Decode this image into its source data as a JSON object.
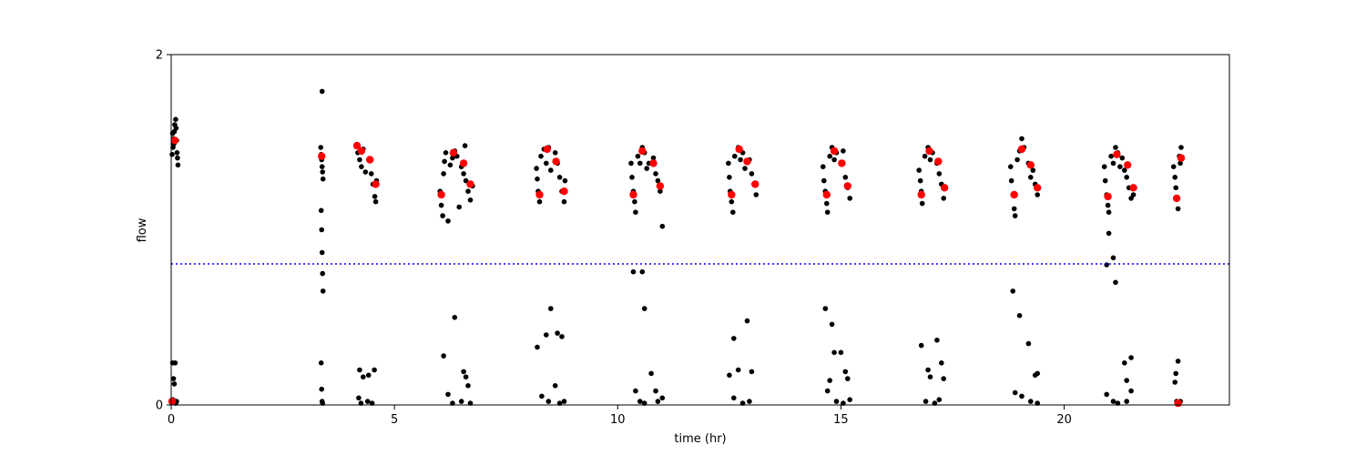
{
  "chart_data": {
    "type": "scatter",
    "title": "",
    "xlabel": "time (hr)",
    "ylabel": "flow",
    "xlim": [
      0,
      23.7
    ],
    "ylim": [
      0,
      2
    ],
    "x_ticks": [
      0,
      5,
      10,
      15,
      20
    ],
    "x_tick_labels": [
      "0",
      "5",
      "10",
      "15",
      "20"
    ],
    "y_ticks": [
      0,
      2
    ],
    "y_tick_labels": [
      "0",
      "2"
    ],
    "grid": false,
    "threshold_line": {
      "y": 0.805,
      "style": "dotted",
      "color": "#0000ff"
    },
    "series": [
      {
        "color": "#000000",
        "marker": "circle",
        "points": [
          [
            0.02,
            1.43
          ],
          [
            0.04,
            1.47
          ],
          [
            0.05,
            1.52
          ],
          [
            0.07,
            1.56
          ],
          [
            0.08,
            1.6
          ],
          [
            0.1,
            1.63
          ],
          [
            0.12,
            1.51
          ],
          [
            0.13,
            1.44
          ],
          [
            0.15,
            1.37
          ],
          [
            0.03,
            1.55
          ],
          [
            0.06,
            1.49
          ],
          [
            0.11,
            1.58
          ],
          [
            0.14,
            1.41
          ],
          [
            0.03,
            0.24
          ],
          [
            0.05,
            0.15
          ],
          [
            0.07,
            0.12
          ],
          [
            0.09,
            0.24
          ],
          [
            0.1,
            0.01
          ],
          [
            0.12,
            0.02
          ],
          [
            0.04,
            0.03
          ],
          [
            3.38,
            1.79
          ],
          [
            3.35,
            1.47
          ],
          [
            3.36,
            1.43
          ],
          [
            3.37,
            1.4
          ],
          [
            3.38,
            1.36
          ],
          [
            3.39,
            1.33
          ],
          [
            3.4,
            1.29
          ],
          [
            3.36,
            1.11
          ],
          [
            3.37,
            1.0
          ],
          [
            3.38,
            0.87
          ],
          [
            3.39,
            0.75
          ],
          [
            3.4,
            0.65
          ],
          [
            3.36,
            0.24
          ],
          [
            3.37,
            0.09
          ],
          [
            3.38,
            0.02
          ],
          [
            3.39,
            0.01
          ],
          [
            4.15,
            1.48
          ],
          [
            4.18,
            1.44
          ],
          [
            4.22,
            1.4
          ],
          [
            4.26,
            1.36
          ],
          [
            4.3,
            1.46
          ],
          [
            4.35,
            1.33
          ],
          [
            4.42,
            1.4
          ],
          [
            4.48,
            1.32
          ],
          [
            4.52,
            1.26
          ],
          [
            4.56,
            1.19
          ],
          [
            4.58,
            1.16
          ],
          [
            4.6,
            1.28
          ],
          [
            4.2,
            0.04
          ],
          [
            4.25,
            0.01
          ],
          [
            4.4,
            0.02
          ],
          [
            4.5,
            0.01
          ],
          [
            4.22,
            0.2
          ],
          [
            4.3,
            0.16
          ],
          [
            4.42,
            0.17
          ],
          [
            4.55,
            0.2
          ],
          [
            6.02,
            1.22
          ],
          [
            6.05,
            1.14
          ],
          [
            6.08,
            1.08
          ],
          [
            6.1,
            1.32
          ],
          [
            6.12,
            1.39
          ],
          [
            6.15,
            1.44
          ],
          [
            6.2,
            1.05
          ],
          [
            6.25,
            1.37
          ],
          [
            6.3,
            1.41
          ],
          [
            6.35,
            1.45
          ],
          [
            6.4,
            1.42
          ],
          [
            6.45,
            1.13
          ],
          [
            6.5,
            1.36
          ],
          [
            6.55,
            1.32
          ],
          [
            6.58,
            1.48
          ],
          [
            6.6,
            1.28
          ],
          [
            6.65,
            1.22
          ],
          [
            6.7,
            1.17
          ],
          [
            6.75,
            1.25
          ],
          [
            6.35,
            0.5
          ],
          [
            6.1,
            0.28
          ],
          [
            6.55,
            0.19
          ],
          [
            6.6,
            0.16
          ],
          [
            6.2,
            0.06
          ],
          [
            6.3,
            0.01
          ],
          [
            6.5,
            0.02
          ],
          [
            6.7,
            0.01
          ],
          [
            6.65,
            0.11
          ],
          [
            8.18,
            1.35
          ],
          [
            8.2,
            1.29
          ],
          [
            8.22,
            1.22
          ],
          [
            8.25,
            1.16
          ],
          [
            8.28,
            1.42
          ],
          [
            8.35,
            1.46
          ],
          [
            8.4,
            1.38
          ],
          [
            8.45,
            1.47
          ],
          [
            8.5,
            1.34
          ],
          [
            8.6,
            1.44
          ],
          [
            8.65,
            1.38
          ],
          [
            8.7,
            1.3
          ],
          [
            8.75,
            1.22
          ],
          [
            8.8,
            1.16
          ],
          [
            8.82,
            1.28
          ],
          [
            8.2,
            0.33
          ],
          [
            8.4,
            0.4
          ],
          [
            8.5,
            0.55
          ],
          [
            8.65,
            0.41
          ],
          [
            8.75,
            0.39
          ],
          [
            8.3,
            0.05
          ],
          [
            8.45,
            0.02
          ],
          [
            8.6,
            0.11
          ],
          [
            8.7,
            0.01
          ],
          [
            8.8,
            0.02
          ],
          [
            10.3,
            1.38
          ],
          [
            10.32,
            1.3
          ],
          [
            10.35,
            1.22
          ],
          [
            10.38,
            1.16
          ],
          [
            10.4,
            1.1
          ],
          [
            10.45,
            1.42
          ],
          [
            10.5,
            1.38
          ],
          [
            10.55,
            1.47
          ],
          [
            10.6,
            1.44
          ],
          [
            10.65,
            1.35
          ],
          [
            10.7,
            1.38
          ],
          [
            10.8,
            1.41
          ],
          [
            10.85,
            1.32
          ],
          [
            10.9,
            1.28
          ],
          [
            10.95,
            1.22
          ],
          [
            11.0,
            1.02
          ],
          [
            10.35,
            0.76
          ],
          [
            10.55,
            0.76
          ],
          [
            10.6,
            0.55
          ],
          [
            10.4,
            0.08
          ],
          [
            10.5,
            0.02
          ],
          [
            10.6,
            0.01
          ],
          [
            10.75,
            0.18
          ],
          [
            10.85,
            0.08
          ],
          [
            10.9,
            0.02
          ],
          [
            11.0,
            0.04
          ],
          [
            12.48,
            1.38
          ],
          [
            12.5,
            1.3
          ],
          [
            12.52,
            1.22
          ],
          [
            12.55,
            1.16
          ],
          [
            12.58,
            1.1
          ],
          [
            12.62,
            1.42
          ],
          [
            12.7,
            1.47
          ],
          [
            12.75,
            1.4
          ],
          [
            12.8,
            1.44
          ],
          [
            12.85,
            1.35
          ],
          [
            12.95,
            1.4
          ],
          [
            13.0,
            1.32
          ],
          [
            13.05,
            1.26
          ],
          [
            13.1,
            1.2
          ],
          [
            12.6,
            0.38
          ],
          [
            12.7,
            0.2
          ],
          [
            12.9,
            0.48
          ],
          [
            13.0,
            0.19
          ],
          [
            12.5,
            0.17
          ],
          [
            12.6,
            0.04
          ],
          [
            12.8,
            0.01
          ],
          [
            12.95,
            0.02
          ],
          [
            14.6,
            1.36
          ],
          [
            14.62,
            1.28
          ],
          [
            14.65,
            1.22
          ],
          [
            14.68,
            1.15
          ],
          [
            14.7,
            1.1
          ],
          [
            14.75,
            1.42
          ],
          [
            14.8,
            1.47
          ],
          [
            14.85,
            1.4
          ],
          [
            14.9,
            1.44
          ],
          [
            15.0,
            1.38
          ],
          [
            15.05,
            1.45
          ],
          [
            15.1,
            1.3
          ],
          [
            15.15,
            1.24
          ],
          [
            15.2,
            1.18
          ],
          [
            14.65,
            0.55
          ],
          [
            14.8,
            0.46
          ],
          [
            14.85,
            0.3
          ],
          [
            15.0,
            0.3
          ],
          [
            14.75,
            0.14
          ],
          [
            15.1,
            0.19
          ],
          [
            15.15,
            0.15
          ],
          [
            14.7,
            0.08
          ],
          [
            14.9,
            0.02
          ],
          [
            15.05,
            0.01
          ],
          [
            15.2,
            0.03
          ],
          [
            16.75,
            1.34
          ],
          [
            16.78,
            1.28
          ],
          [
            16.8,
            1.22
          ],
          [
            16.82,
            1.15
          ],
          [
            16.88,
            1.42
          ],
          [
            16.95,
            1.47
          ],
          [
            17.0,
            1.4
          ],
          [
            17.05,
            1.44
          ],
          [
            17.15,
            1.38
          ],
          [
            17.2,
            1.32
          ],
          [
            17.25,
            1.26
          ],
          [
            17.3,
            1.18
          ],
          [
            16.8,
            0.34
          ],
          [
            16.95,
            0.2
          ],
          [
            17.0,
            0.16
          ],
          [
            17.15,
            0.37
          ],
          [
            17.25,
            0.24
          ],
          [
            17.3,
            0.15
          ],
          [
            16.9,
            0.02
          ],
          [
            17.1,
            0.01
          ],
          [
            17.2,
            0.03
          ],
          [
            18.8,
            1.36
          ],
          [
            18.82,
            1.28
          ],
          [
            18.85,
            1.2
          ],
          [
            18.88,
            1.12
          ],
          [
            18.9,
            1.08
          ],
          [
            18.95,
            1.4
          ],
          [
            19.0,
            1.45
          ],
          [
            19.05,
            1.52
          ],
          [
            19.1,
            1.47
          ],
          [
            19.2,
            1.38
          ],
          [
            19.25,
            1.3
          ],
          [
            19.3,
            1.34
          ],
          [
            19.35,
            1.26
          ],
          [
            19.4,
            1.2
          ],
          [
            18.85,
            0.65
          ],
          [
            19.0,
            0.51
          ],
          [
            19.2,
            0.35
          ],
          [
            19.35,
            0.17
          ],
          [
            19.4,
            0.18
          ],
          [
            18.9,
            0.07
          ],
          [
            19.05,
            0.05
          ],
          [
            19.25,
            0.02
          ],
          [
            19.4,
            0.01
          ],
          [
            20.9,
            1.36
          ],
          [
            20.92,
            1.28
          ],
          [
            20.95,
            1.2
          ],
          [
            20.98,
            1.14
          ],
          [
            21.0,
            1.1
          ],
          [
            21.05,
            1.42
          ],
          [
            21.1,
            1.38
          ],
          [
            21.15,
            1.47
          ],
          [
            21.2,
            1.44
          ],
          [
            21.25,
            1.36
          ],
          [
            21.3,
            1.41
          ],
          [
            21.35,
            1.34
          ],
          [
            21.4,
            1.3
          ],
          [
            21.45,
            1.24
          ],
          [
            21.5,
            1.18
          ],
          [
            21.55,
            1.2
          ],
          [
            20.95,
            0.8
          ],
          [
            21.0,
            0.98
          ],
          [
            21.1,
            0.84
          ],
          [
            21.15,
            0.7
          ],
          [
            21.35,
            0.24
          ],
          [
            21.4,
            0.14
          ],
          [
            21.5,
            0.27
          ],
          [
            20.95,
            0.06
          ],
          [
            21.1,
            0.02
          ],
          [
            21.2,
            0.01
          ],
          [
            21.4,
            0.02
          ],
          [
            21.5,
            0.08
          ],
          [
            22.45,
            1.36
          ],
          [
            22.48,
            1.3
          ],
          [
            22.5,
            1.24
          ],
          [
            22.52,
            1.18
          ],
          [
            22.55,
            1.12
          ],
          [
            22.58,
            1.42
          ],
          [
            22.6,
            1.38
          ],
          [
            22.62,
            1.47
          ],
          [
            22.5,
            0.18
          ],
          [
            22.55,
            0.25
          ],
          [
            22.48,
            0.13
          ],
          [
            22.52,
            0.02
          ],
          [
            22.58,
            0.01
          ],
          [
            22.6,
            0.02
          ]
        ]
      },
      {
        "color": "#ff0000",
        "marker": "circle",
        "points": [
          [
            0.08,
            1.51
          ],
          [
            3.37,
            1.42
          ],
          [
            4.16,
            1.48
          ],
          [
            4.26,
            1.45
          ],
          [
            4.45,
            1.4
          ],
          [
            4.58,
            1.26
          ],
          [
            6.05,
            1.2
          ],
          [
            6.32,
            1.44
          ],
          [
            6.55,
            1.38
          ],
          [
            6.7,
            1.26
          ],
          [
            8.25,
            1.2
          ],
          [
            8.42,
            1.46
          ],
          [
            8.62,
            1.39
          ],
          [
            8.8,
            1.22
          ],
          [
            10.35,
            1.2
          ],
          [
            10.55,
            1.45
          ],
          [
            10.8,
            1.38
          ],
          [
            10.95,
            1.25
          ],
          [
            12.55,
            1.2
          ],
          [
            12.72,
            1.46
          ],
          [
            12.9,
            1.39
          ],
          [
            13.08,
            1.26
          ],
          [
            14.68,
            1.2
          ],
          [
            14.85,
            1.45
          ],
          [
            15.02,
            1.38
          ],
          [
            15.15,
            1.25
          ],
          [
            16.8,
            1.2
          ],
          [
            16.98,
            1.45
          ],
          [
            17.18,
            1.39
          ],
          [
            17.32,
            1.24
          ],
          [
            18.88,
            1.2
          ],
          [
            19.05,
            1.46
          ],
          [
            19.25,
            1.37
          ],
          [
            19.4,
            1.24
          ],
          [
            20.98,
            1.19
          ],
          [
            21.18,
            1.43
          ],
          [
            21.42,
            1.37
          ],
          [
            21.55,
            1.24
          ],
          [
            22.52,
            1.18
          ],
          [
            22.62,
            1.41
          ],
          [
            0.02,
            0.02
          ],
          [
            22.55,
            0.01
          ]
        ]
      }
    ]
  }
}
